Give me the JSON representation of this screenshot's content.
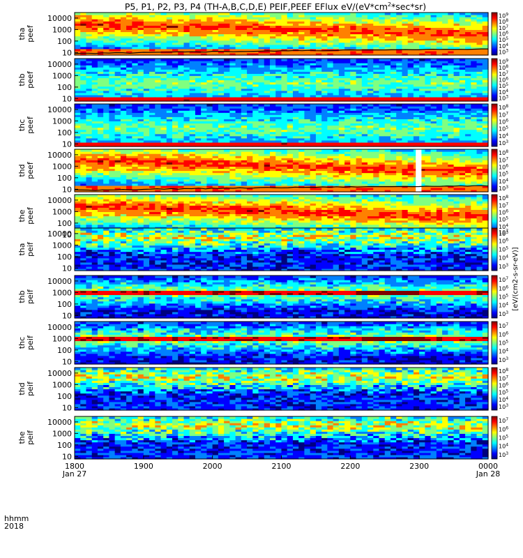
{
  "title": "P5, P1, P2, P3, P4 (TH-A,B,C,D,E) PEIF,PEEF EFlux eV/(eV*cm",
  "title_units": "2",
  "title_tail": "*sec*sr)",
  "colormap": [
    "#00007f",
    "#0000ff",
    "#0080ff",
    "#00ffff",
    "#80ff80",
    "#ffff00",
    "#ff8000",
    "#ff0000",
    "#7f0000"
  ],
  "chart_data": {
    "type": "heatmap",
    "x_axis": {
      "row1_label": "hhmm",
      "row2_label": "2018",
      "ticks": [
        "1800",
        "1900",
        "2000",
        "2100",
        "2200",
        "2300",
        "0000"
      ],
      "dates": [
        "Jan 27",
        "",
        "",
        "",
        "",
        "",
        "Jan 28"
      ],
      "range_minutes": [
        0,
        360
      ]
    },
    "y_axis": {
      "scale": "log",
      "ticks": [
        "10",
        "100",
        "1000",
        "10000"
      ],
      "range": [
        6,
        30000
      ]
    },
    "colorbar_units": "[eV/(cm2-s-sr-eV)]",
    "panels": [
      {
        "probe": "tha",
        "species": "peef",
        "cb_ticks": [
          "3",
          "4",
          "5",
          "6",
          "7",
          "8",
          "9"
        ],
        "profile": "elec",
        "seed": 1,
        "cutoff": true
      },
      {
        "probe": "thb",
        "species": "peef",
        "cb_ticks": [
          "3",
          "4",
          "5",
          "6",
          "7",
          "8",
          "9"
        ],
        "profile": "elec_flat",
        "seed": 2,
        "cutoff": false
      },
      {
        "probe": "thc",
        "species": "peef",
        "cb_ticks": [
          "3",
          "4",
          "5",
          "6",
          "7",
          "8"
        ],
        "profile": "elec_flat",
        "seed": 3,
        "cutoff": false
      },
      {
        "probe": "thd",
        "species": "peef",
        "cb_ticks": [
          "3",
          "4",
          "5",
          "6",
          "7",
          "8"
        ],
        "profile": "elec",
        "seed": 4,
        "cutoff": true,
        "gap": [
          297,
          302
        ]
      },
      {
        "probe": "the",
        "species": "peef",
        "cb_ticks": [
          "3",
          "4",
          "5",
          "6",
          "7",
          "8"
        ],
        "profile": "elec",
        "seed": 5,
        "cutoff": true
      },
      {
        "probe": "tha",
        "species": "peif",
        "cb_ticks": [
          "3",
          "4",
          "5",
          "6",
          "7"
        ],
        "profile": "ion",
        "seed": 6,
        "cutoff": false
      },
      {
        "probe": "thb",
        "species": "peif",
        "cb_ticks": [
          "3",
          "4",
          "5",
          "6",
          "7"
        ],
        "profile": "ion_band",
        "seed": 7,
        "cutoff": false
      },
      {
        "probe": "thc",
        "species": "peif",
        "cb_ticks": [
          "3",
          "4",
          "5",
          "6",
          "7"
        ],
        "profile": "ion_band",
        "seed": 8,
        "cutoff": false
      },
      {
        "probe": "thd",
        "species": "peif",
        "cb_ticks": [
          "3",
          "4",
          "5",
          "6",
          "7",
          "8"
        ],
        "profile": "ion",
        "seed": 9,
        "cutoff": false
      },
      {
        "probe": "the",
        "species": "peif",
        "cb_ticks": [
          "3",
          "4",
          "5",
          "6",
          "7"
        ],
        "profile": "ion",
        "seed": 10,
        "cutoff": false
      }
    ]
  }
}
